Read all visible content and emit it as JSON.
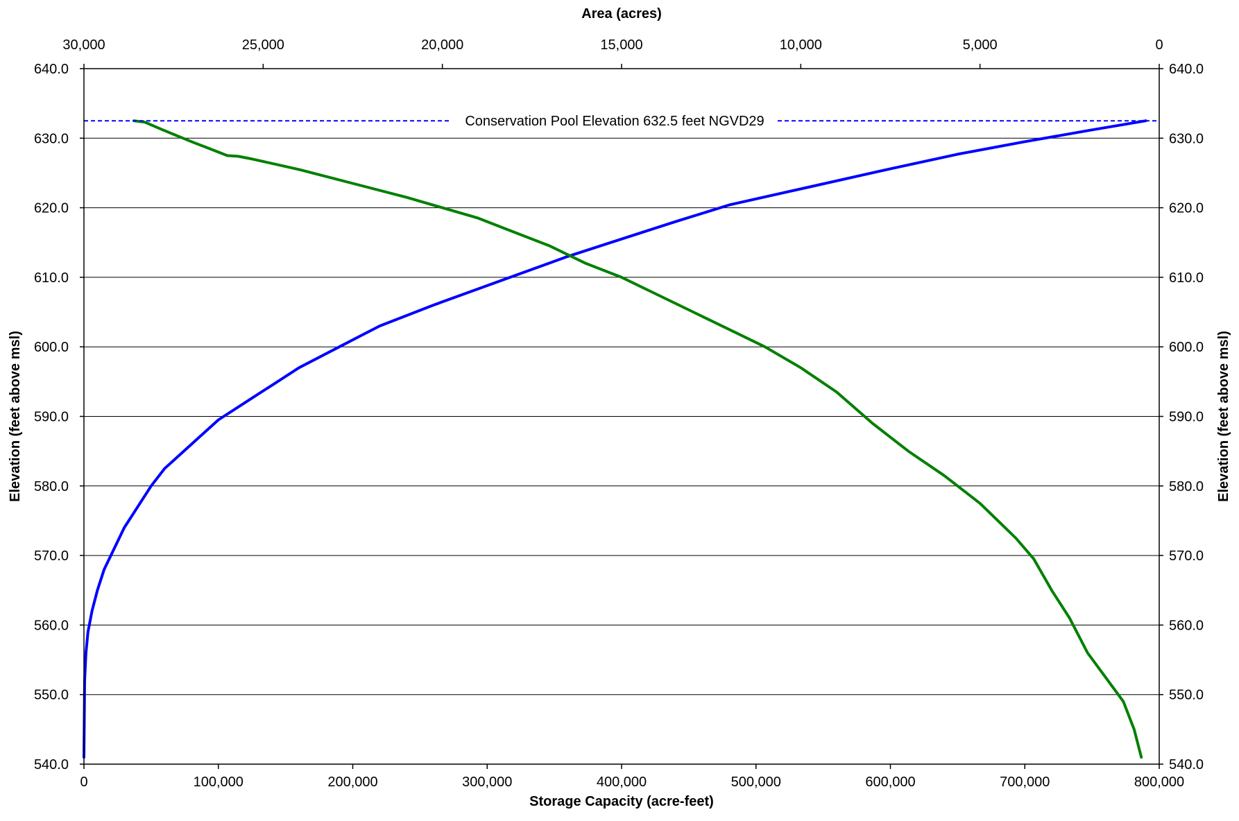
{
  "chart_data": {
    "type": "line",
    "title": "",
    "xlabel": "Storage Capacity (acre-feet)",
    "x2label": "Area (acres)",
    "ylabel": "Elevation (feet above msl)",
    "y2label": "Elevation (feet above msl)",
    "xlim": [
      0,
      800000
    ],
    "x2lim": [
      30000,
      0
    ],
    "ylim": [
      540,
      640
    ],
    "x2_reversed": true,
    "grid": "horizontal",
    "legend": "none",
    "x_ticks": [
      "0",
      "100,000",
      "200,000",
      "300,000",
      "400,000",
      "500,000",
      "600,000",
      "700,000",
      "800,000"
    ],
    "x2_ticks": [
      "30,000",
      "25,000",
      "20,000",
      "15,000",
      "10,000",
      "5,000",
      "0"
    ],
    "y_ticks": [
      "540.0",
      "550.0",
      "560.0",
      "570.0",
      "580.0",
      "590.0",
      "600.0",
      "610.0",
      "620.0",
      "630.0",
      "640.0"
    ],
    "annotation": {
      "text": "Conservation Pool Elevation 632.5 feet NGVD29",
      "y": 632.5,
      "color": "#0000ff"
    },
    "series": [
      {
        "axis": "storage",
        "color": "#0000ff",
        "points": [
          [
            0,
            541
          ],
          [
            500,
            552
          ],
          [
            1500,
            556
          ],
          [
            3000,
            559
          ],
          [
            6000,
            562
          ],
          [
            10000,
            565
          ],
          [
            15000,
            568
          ],
          [
            20000,
            570
          ],
          [
            30000,
            574
          ],
          [
            40000,
            577
          ],
          [
            50000,
            580
          ],
          [
            60000,
            582.5
          ],
          [
            80000,
            586
          ],
          [
            100000,
            589.5
          ],
          [
            120000,
            592
          ],
          [
            140000,
            594.5
          ],
          [
            160000,
            597
          ],
          [
            190000,
            600
          ],
          [
            220000,
            603
          ],
          [
            260000,
            606
          ],
          [
            310000,
            609.5
          ],
          [
            360000,
            613
          ],
          [
            400000,
            615.5
          ],
          [
            440000,
            618
          ],
          [
            480000,
            620.4
          ],
          [
            540000,
            623
          ],
          [
            600000,
            625.6
          ],
          [
            650000,
            627.7
          ],
          [
            700000,
            629.5
          ],
          [
            750000,
            631.2
          ],
          [
            790000,
            632.5
          ]
        ]
      },
      {
        "axis": "area",
        "color": "#008000",
        "points": [
          [
            28600,
            632.5
          ],
          [
            28300,
            632.3
          ],
          [
            27800,
            631.2
          ],
          [
            27000,
            629.5
          ],
          [
            26500,
            628.5
          ],
          [
            26000,
            627.5
          ],
          [
            25700,
            627.4
          ],
          [
            25500,
            627.2
          ],
          [
            25300,
            627
          ],
          [
            24000,
            625.5
          ],
          [
            22500,
            623.5
          ],
          [
            21000,
            621.5
          ],
          [
            20000,
            620
          ],
          [
            19000,
            618.5
          ],
          [
            18000,
            616.5
          ],
          [
            17000,
            614.5
          ],
          [
            16000,
            612
          ],
          [
            15000,
            610
          ],
          [
            14000,
            607.5
          ],
          [
            13000,
            605
          ],
          [
            12000,
            602.5
          ],
          [
            11000,
            600
          ],
          [
            10000,
            597
          ],
          [
            9000,
            593.5
          ],
          [
            8000,
            589
          ],
          [
            7000,
            585
          ],
          [
            6000,
            581.5
          ],
          [
            5000,
            577.5
          ],
          [
            4000,
            572.5
          ],
          [
            3500,
            569.5
          ],
          [
            3000,
            565
          ],
          [
            2500,
            561
          ],
          [
            2000,
            556
          ],
          [
            1500,
            552.5
          ],
          [
            1000,
            549
          ],
          [
            700,
            545
          ],
          [
            500,
            541
          ]
        ]
      }
    ]
  }
}
